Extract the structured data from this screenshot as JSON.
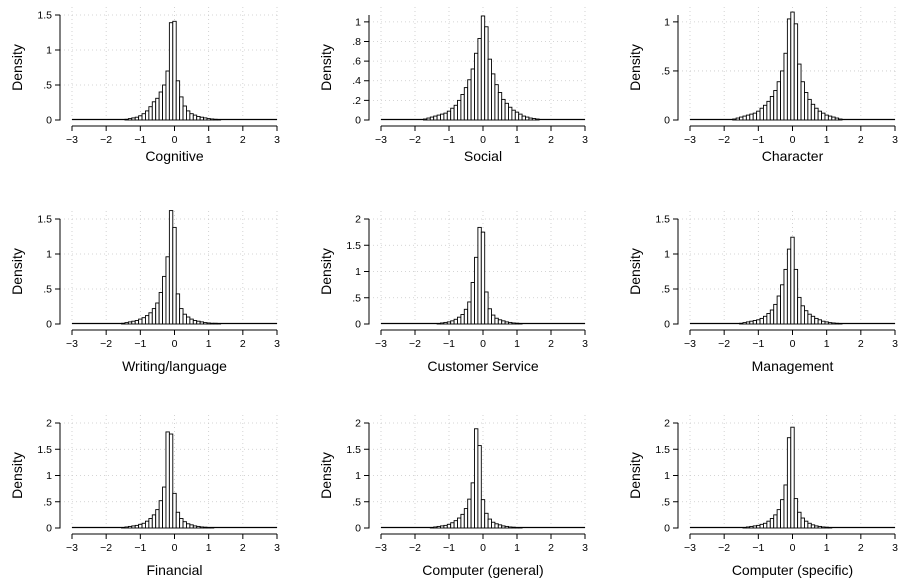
{
  "figure": {
    "ylabel": "Density",
    "bin_width": 0.1,
    "bar_fill_color": "#ffffff",
    "bar_stroke_color": "#000000",
    "grid_color": "#c8c8c8",
    "grid": true
  },
  "chart_data": [
    {
      "type": "bar",
      "title": "",
      "xlabel": "Cognitive",
      "ylabel": "Density",
      "xlim": [
        -3,
        3
      ],
      "ylim": [
        0,
        1.5
      ],
      "xticks": [
        -3,
        -2,
        -1,
        0,
        1,
        2,
        3
      ],
      "xtick_labels": [
        "−3",
        "−2",
        "−1",
        "0",
        "1",
        "2",
        "3"
      ],
      "yticks": [
        0,
        0.5,
        1,
        1.5
      ],
      "ytick_labels": [
        "0",
        ".5",
        "1",
        "1.5"
      ],
      "x": [
        -1.4,
        -1.3,
        -1.2,
        -1.1,
        -1.0,
        -0.9,
        -0.8,
        -0.7,
        -0.6,
        -0.5,
        -0.4,
        -0.3,
        -0.2,
        -0.1,
        0.0,
        0.1,
        0.2,
        0.3,
        0.4,
        0.5,
        0.6,
        0.7,
        0.8,
        0.9,
        1.0,
        1.1,
        1.2,
        1.3
      ],
      "values": [
        0.01,
        0.02,
        0.03,
        0.04,
        0.06,
        0.09,
        0.13,
        0.19,
        0.26,
        0.31,
        0.4,
        0.5,
        0.7,
        1.39,
        1.41,
        0.56,
        0.33,
        0.2,
        0.13,
        0.09,
        0.07,
        0.05,
        0.04,
        0.03,
        0.02,
        0.015,
        0.01,
        0.005
      ]
    },
    {
      "type": "bar",
      "title": "",
      "xlabel": "Social",
      "ylabel": "Density",
      "xlim": [
        -3,
        3
      ],
      "ylim": [
        0,
        1.07
      ],
      "xticks": [
        -3,
        -2,
        -1,
        0,
        1,
        2,
        3
      ],
      "xtick_labels": [
        "−3",
        "−2",
        "−1",
        "0",
        "1",
        "2",
        "3"
      ],
      "yticks": [
        0,
        0.2,
        0.4,
        0.6,
        0.8,
        1.0
      ],
      "ytick_labels": [
        "0",
        ".2",
        ".4",
        ".6",
        ".8",
        "1"
      ],
      "x": [
        -1.7,
        -1.6,
        -1.5,
        -1.4,
        -1.3,
        -1.2,
        -1.1,
        -1.0,
        -0.9,
        -0.8,
        -0.7,
        -0.6,
        -0.5,
        -0.4,
        -0.3,
        -0.2,
        -0.1,
        0.0,
        0.1,
        0.2,
        0.3,
        0.4,
        0.5,
        0.6,
        0.7,
        0.8,
        0.9,
        1.0,
        1.1,
        1.2,
        1.3,
        1.4,
        1.5,
        1.6
      ],
      "values": [
        0.01,
        0.02,
        0.03,
        0.04,
        0.05,
        0.06,
        0.07,
        0.09,
        0.12,
        0.15,
        0.2,
        0.26,
        0.33,
        0.41,
        0.52,
        0.68,
        0.83,
        1.06,
        0.95,
        0.62,
        0.47,
        0.36,
        0.28,
        0.21,
        0.17,
        0.13,
        0.1,
        0.08,
        0.06,
        0.04,
        0.03,
        0.02,
        0.015,
        0.01
      ]
    },
    {
      "type": "bar",
      "title": "",
      "xlabel": "Character",
      "ylabel": "Density",
      "xlim": [
        -3,
        3
      ],
      "ylim": [
        0,
        1.07
      ],
      "xticks": [
        -3,
        -2,
        -1,
        0,
        1,
        2,
        3
      ],
      "xtick_labels": [
        "−3",
        "−2",
        "−1",
        "0",
        "1",
        "2",
        "3"
      ],
      "yticks": [
        0,
        0.5,
        1
      ],
      "ytick_labels": [
        "0",
        ".5",
        "1"
      ],
      "x": [
        -1.7,
        -1.6,
        -1.5,
        -1.4,
        -1.3,
        -1.2,
        -1.1,
        -1.0,
        -0.9,
        -0.8,
        -0.7,
        -0.6,
        -0.5,
        -0.4,
        -0.3,
        -0.2,
        -0.1,
        0.0,
        0.1,
        0.2,
        0.3,
        0.4,
        0.5,
        0.6,
        0.7,
        0.8,
        0.9,
        1.0,
        1.1,
        1.2,
        1.3,
        1.4
      ],
      "values": [
        0.01,
        0.02,
        0.03,
        0.04,
        0.05,
        0.06,
        0.07,
        0.09,
        0.12,
        0.15,
        0.19,
        0.24,
        0.3,
        0.39,
        0.5,
        0.68,
        1.03,
        1.1,
        0.98,
        0.57,
        0.39,
        0.28,
        0.21,
        0.16,
        0.12,
        0.09,
        0.07,
        0.05,
        0.04,
        0.03,
        0.02,
        0.01
      ]
    },
    {
      "type": "bar",
      "title": "",
      "xlabel": "Writing/language",
      "ylabel": "Density",
      "xlim": [
        -3,
        3
      ],
      "ylim": [
        0,
        1.5
      ],
      "xticks": [
        -3,
        -2,
        -1,
        0,
        1,
        2,
        3
      ],
      "xtick_labels": [
        "−3",
        "−2",
        "−1",
        "0",
        "1",
        "2",
        "3"
      ],
      "yticks": [
        0,
        0.5,
        1,
        1.5
      ],
      "ytick_labels": [
        "0",
        ".5",
        "1",
        "1.5"
      ],
      "x": [
        -1.5,
        -1.4,
        -1.3,
        -1.2,
        -1.1,
        -1.0,
        -0.9,
        -0.8,
        -0.7,
        -0.6,
        -0.5,
        -0.4,
        -0.3,
        -0.2,
        -0.1,
        0.0,
        0.1,
        0.2,
        0.3,
        0.4,
        0.5,
        0.6,
        0.7,
        0.8,
        0.9,
        1.0,
        1.1,
        1.2,
        1.3
      ],
      "values": [
        0.01,
        0.02,
        0.03,
        0.04,
        0.05,
        0.07,
        0.09,
        0.12,
        0.16,
        0.22,
        0.3,
        0.45,
        0.68,
        0.96,
        1.62,
        1.38,
        0.43,
        0.22,
        0.14,
        0.1,
        0.07,
        0.05,
        0.04,
        0.03,
        0.02,
        0.015,
        0.01,
        0.01,
        0.005
      ]
    },
    {
      "type": "bar",
      "title": "",
      "xlabel": "Customer Service",
      "ylabel": "Density",
      "xlim": [
        -3,
        3
      ],
      "ylim": [
        0,
        2
      ],
      "xticks": [
        -3,
        -2,
        -1,
        0,
        1,
        2,
        3
      ],
      "xtick_labels": [
        "−3",
        "−2",
        "−1",
        "0",
        "1",
        "2",
        "3"
      ],
      "yticks": [
        0,
        0.5,
        1,
        1.5,
        2
      ],
      "ytick_labels": [
        "0",
        ".5",
        "1",
        "1.5",
        "2"
      ],
      "x": [
        -1.3,
        -1.2,
        -1.1,
        -1.0,
        -0.9,
        -0.8,
        -0.7,
        -0.6,
        -0.5,
        -0.4,
        -0.3,
        -0.2,
        -0.1,
        0.0,
        0.1,
        0.2,
        0.3,
        0.4,
        0.5,
        0.6,
        0.7,
        0.8,
        0.9,
        1.0,
        1.1
      ],
      "values": [
        0.01,
        0.02,
        0.03,
        0.04,
        0.06,
        0.09,
        0.13,
        0.18,
        0.28,
        0.42,
        0.79,
        1.27,
        1.84,
        1.75,
        0.61,
        0.29,
        0.17,
        0.11,
        0.08,
        0.06,
        0.04,
        0.03,
        0.02,
        0.015,
        0.01
      ]
    },
    {
      "type": "bar",
      "title": "",
      "xlabel": "Management",
      "ylabel": "Density",
      "xlim": [
        -3,
        3
      ],
      "ylim": [
        0,
        1.5
      ],
      "xticks": [
        -3,
        -2,
        -1,
        0,
        1,
        2,
        3
      ],
      "xtick_labels": [
        "−3",
        "−2",
        "−1",
        "0",
        "1",
        "2",
        "3"
      ],
      "yticks": [
        0,
        0.5,
        1,
        1.5
      ],
      "ytick_labels": [
        "0",
        ".5",
        "1",
        "1.5"
      ],
      "x": [
        -1.5,
        -1.4,
        -1.3,
        -1.2,
        -1.1,
        -1.0,
        -0.9,
        -0.8,
        -0.7,
        -0.6,
        -0.5,
        -0.4,
        -0.3,
        -0.2,
        -0.1,
        0.0,
        0.1,
        0.2,
        0.3,
        0.4,
        0.5,
        0.6,
        0.7,
        0.8,
        0.9,
        1.0,
        1.1,
        1.2,
        1.3,
        1.4
      ],
      "values": [
        0.01,
        0.02,
        0.03,
        0.04,
        0.05,
        0.06,
        0.08,
        0.11,
        0.15,
        0.2,
        0.28,
        0.4,
        0.56,
        0.78,
        1.07,
        1.24,
        0.78,
        0.38,
        0.26,
        0.19,
        0.14,
        0.11,
        0.08,
        0.06,
        0.04,
        0.03,
        0.02,
        0.015,
        0.01,
        0.005
      ]
    },
    {
      "type": "bar",
      "title": "",
      "xlabel": "Financial",
      "ylabel": "Density",
      "xlim": [
        -3,
        3
      ],
      "ylim": [
        0,
        2
      ],
      "xticks": [
        -3,
        -2,
        -1,
        0,
        1,
        2,
        3
      ],
      "xtick_labels": [
        "−3",
        "−2",
        "−1",
        "0",
        "1",
        "2",
        "3"
      ],
      "yticks": [
        0,
        0.5,
        1,
        1.5,
        2
      ],
      "ytick_labels": [
        "0",
        ".5",
        "1",
        "1.5",
        "2"
      ],
      "x": [
        -1.5,
        -1.4,
        -1.3,
        -1.2,
        -1.1,
        -1.0,
        -0.9,
        -0.8,
        -0.7,
        -0.6,
        -0.5,
        -0.4,
        -0.3,
        -0.2,
        -0.1,
        0.0,
        0.1,
        0.2,
        0.3,
        0.4,
        0.5,
        0.6,
        0.7,
        0.8,
        0.9,
        1.0,
        1.1
      ],
      "values": [
        0.01,
        0.02,
        0.03,
        0.04,
        0.05,
        0.07,
        0.09,
        0.13,
        0.18,
        0.25,
        0.35,
        0.52,
        0.78,
        1.83,
        1.79,
        0.66,
        0.3,
        0.18,
        0.12,
        0.08,
        0.06,
        0.04,
        0.03,
        0.02,
        0.015,
        0.01,
        0.005
      ]
    },
    {
      "type": "bar",
      "title": "",
      "xlabel": "Computer (general)",
      "ylabel": "Density",
      "xlim": [
        -3,
        3
      ],
      "ylim": [
        0,
        2
      ],
      "xticks": [
        -3,
        -2,
        -1,
        0,
        1,
        2,
        3
      ],
      "xtick_labels": [
        "−3",
        "−2",
        "−1",
        "0",
        "1",
        "2",
        "3"
      ],
      "yticks": [
        0,
        0.5,
        1,
        1.5,
        2
      ],
      "ytick_labels": [
        "0",
        ".5",
        "1",
        "1.5",
        "2"
      ],
      "x": [
        -1.5,
        -1.4,
        -1.3,
        -1.2,
        -1.1,
        -1.0,
        -0.9,
        -0.8,
        -0.7,
        -0.6,
        -0.5,
        -0.4,
        -0.3,
        -0.2,
        -0.1,
        0.0,
        0.1,
        0.2,
        0.3,
        0.4,
        0.5,
        0.6,
        0.7,
        0.8,
        0.9,
        1.0,
        1.1
      ],
      "values": [
        0.01,
        0.02,
        0.03,
        0.04,
        0.05,
        0.07,
        0.1,
        0.14,
        0.19,
        0.26,
        0.37,
        0.55,
        0.86,
        1.89,
        1.57,
        0.54,
        0.28,
        0.17,
        0.11,
        0.08,
        0.06,
        0.04,
        0.03,
        0.02,
        0.015,
        0.01,
        0.005
      ]
    },
    {
      "type": "bar",
      "title": "",
      "xlabel": "Computer (specific)",
      "ylabel": "Density",
      "xlim": [
        -3,
        3
      ],
      "ylim": [
        0,
        2
      ],
      "xticks": [
        -3,
        -2,
        -1,
        0,
        1,
        2,
        3
      ],
      "xtick_labels": [
        "−3",
        "−2",
        "−1",
        "0",
        "1",
        "2",
        "3"
      ],
      "yticks": [
        0,
        0.5,
        1,
        1.5,
        2
      ],
      "ytick_labels": [
        "0",
        ".5",
        "1",
        "1.5",
        "2"
      ],
      "x": [
        -1.4,
        -1.3,
        -1.2,
        -1.1,
        -1.0,
        -0.9,
        -0.8,
        -0.7,
        -0.6,
        -0.5,
        -0.4,
        -0.3,
        -0.2,
        -0.1,
        0.0,
        0.1,
        0.2,
        0.3,
        0.4,
        0.5,
        0.6,
        0.7,
        0.8,
        0.9,
        1.0,
        1.1
      ],
      "values": [
        0.01,
        0.02,
        0.03,
        0.04,
        0.05,
        0.07,
        0.09,
        0.13,
        0.18,
        0.25,
        0.35,
        0.54,
        0.82,
        1.72,
        1.92,
        0.56,
        0.3,
        0.19,
        0.13,
        0.09,
        0.06,
        0.04,
        0.03,
        0.02,
        0.015,
        0.01
      ]
    }
  ]
}
